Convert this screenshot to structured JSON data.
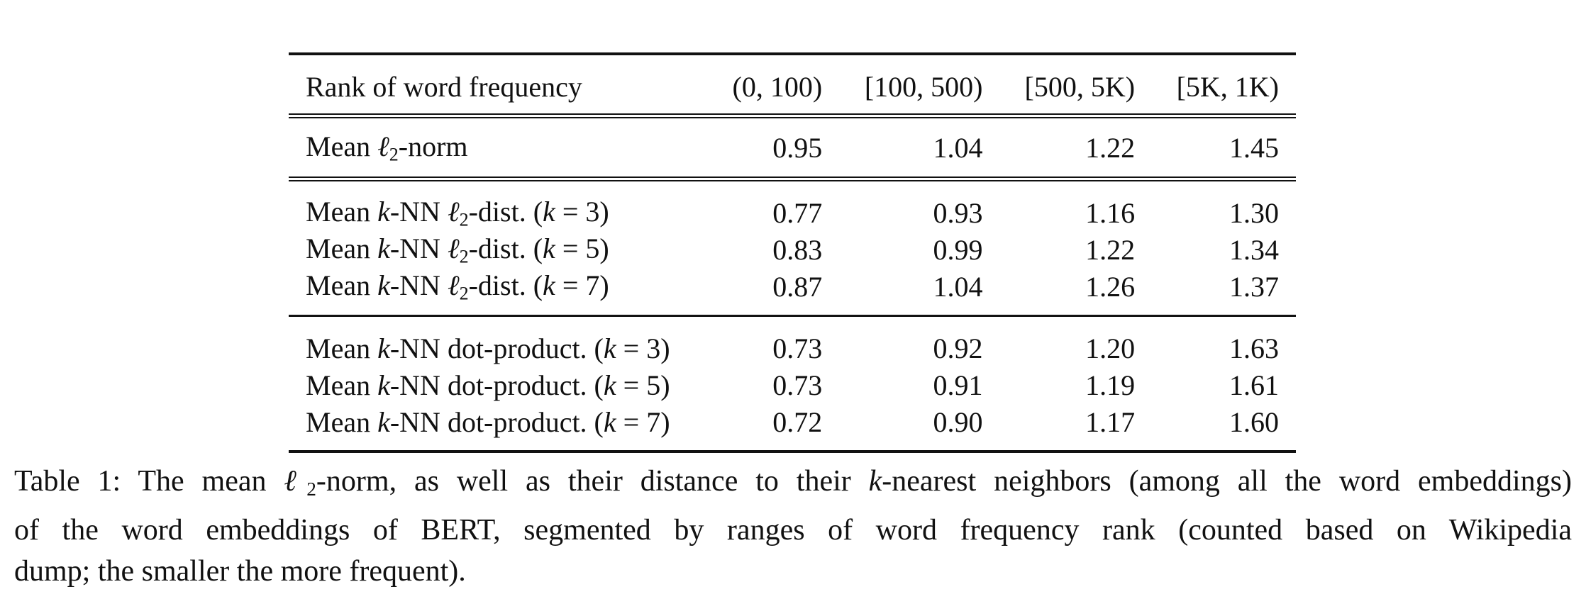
{
  "table": {
    "header": {
      "label": "Rank of word frequency",
      "columns": [
        "(0, 100)",
        "[100, 500)",
        "[500, 5K)",
        "[5K, 1K)"
      ]
    },
    "norm_row": {
      "label_prefix": "Mean ",
      "label_symbol": "ℓ",
      "label_sub": "2",
      "label_suffix": "-norm",
      "values": [
        "0.95",
        "1.04",
        "1.22",
        "1.45"
      ]
    },
    "dist_rows": [
      {
        "label_prefix": "Mean ",
        "k": "k",
        "label_mid": "-NN ",
        "symbol": "ℓ",
        "sub": "2",
        "label_suffix": "-dist. (",
        "k2": "k",
        "eq": " = 3)",
        "values": [
          "0.77",
          "0.93",
          "1.16",
          "1.30"
        ]
      },
      {
        "label_prefix": "Mean ",
        "k": "k",
        "label_mid": "-NN ",
        "symbol": "ℓ",
        "sub": "2",
        "label_suffix": "-dist. (",
        "k2": "k",
        "eq": " = 5)",
        "values": [
          "0.83",
          "0.99",
          "1.22",
          "1.34"
        ]
      },
      {
        "label_prefix": "Mean ",
        "k": "k",
        "label_mid": "-NN ",
        "symbol": "ℓ",
        "sub": "2",
        "label_suffix": "-dist. (",
        "k2": "k",
        "eq": " = 7)",
        "values": [
          "0.87",
          "1.04",
          "1.26",
          "1.37"
        ]
      }
    ],
    "dot_rows": [
      {
        "label_prefix": "Mean ",
        "k": "k",
        "label_mid": "-NN dot-product. (",
        "k2": "k",
        "eq": " = 3)",
        "values": [
          "0.73",
          "0.92",
          "1.20",
          "1.63"
        ]
      },
      {
        "label_prefix": "Mean ",
        "k": "k",
        "label_mid": "-NN dot-product. (",
        "k2": "k",
        "eq": " = 5)",
        "values": [
          "0.73",
          "0.91",
          "1.19",
          "1.61"
        ]
      },
      {
        "label_prefix": "Mean ",
        "k": "k",
        "label_mid": "-NN dot-product. (",
        "k2": "k",
        "eq": " = 7)",
        "values": [
          "0.72",
          "0.90",
          "1.17",
          "1.60"
        ]
      }
    ]
  },
  "caption": {
    "line1_a": "Table 1:  The mean ",
    "line1_symbol": "ℓ",
    "line1_sub": "2",
    "line1_b": "-norm, as well as their distance to their ",
    "line1_k": "k",
    "line1_c": "-nearest neighbors (among all the word embeddings)",
    "line2": "of the word embeddings of BERT, segmented by ranges of word frequency rank (counted based on Wikipedia",
    "line3": "dump; the smaller the more frequent)."
  }
}
